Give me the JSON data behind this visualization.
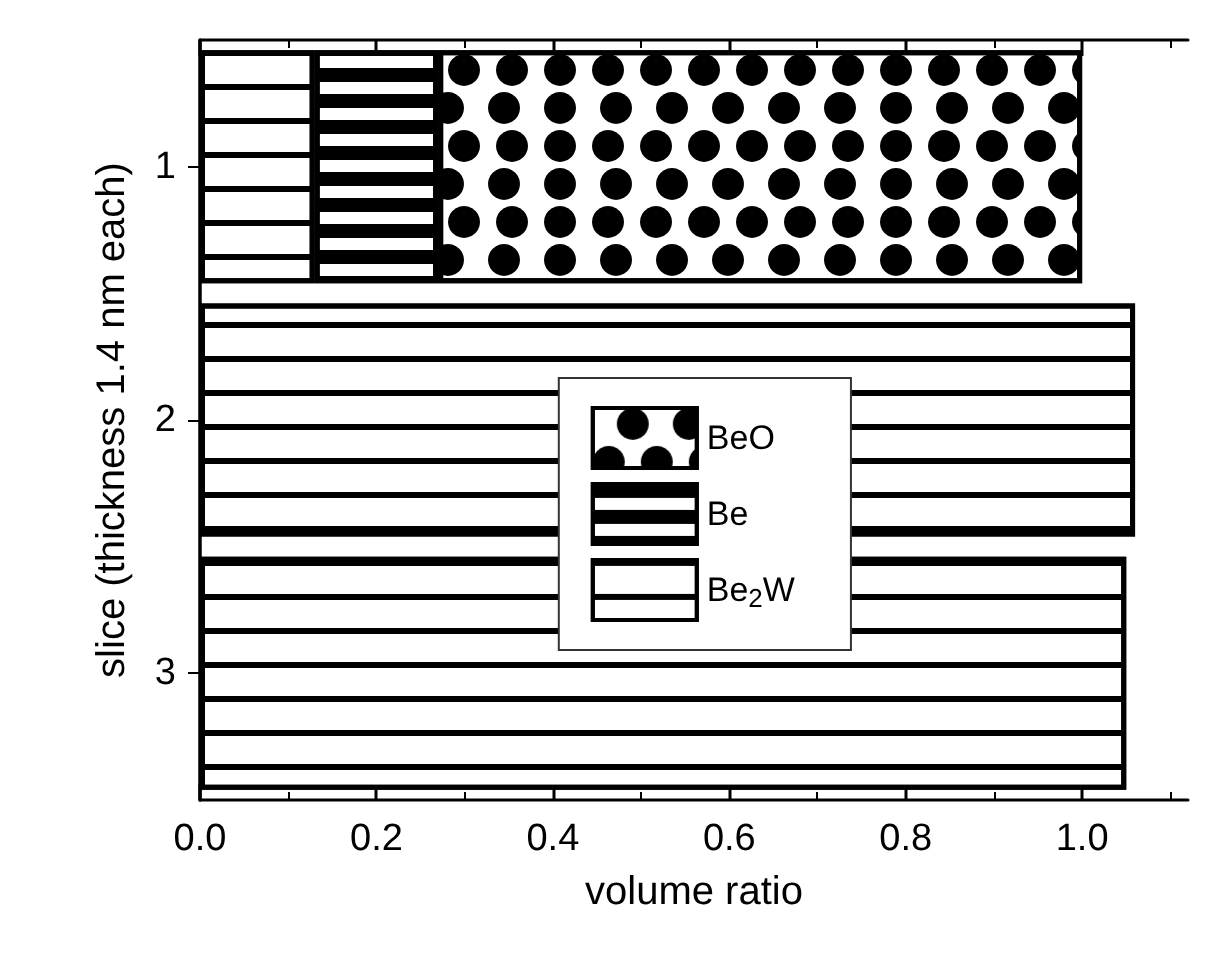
{
  "chart_data": {
    "type": "bar",
    "orientation": "horizontal",
    "stacked": true,
    "xlabel": "volume ratio",
    "ylabel": "slice (thickness 1.4 nm each)",
    "categories": [
      "1",
      "2",
      "3"
    ],
    "xlim": [
      0,
      1.12
    ],
    "xticks": [
      {
        "value": 0,
        "label": "0.0"
      },
      0.2,
      0.4,
      0.6,
      0.8,
      {
        "value": 1,
        "label": "1.0"
      }
    ],
    "grid": false,
    "legend": "center",
    "series": [
      {
        "name": "Be$_{2}$W",
        "color": "#000000",
        "values": [
          0.13,
          1.06,
          1.05
        ]
      },
      {
        "name": "Be",
        "color": "#000000",
        "values": [
          0.14,
          null,
          null
        ]
      },
      {
        "name": "BeO",
        "color": "#000000",
        "values": [
          0.73,
          null,
          null
        ]
      }
    ]
  }
}
